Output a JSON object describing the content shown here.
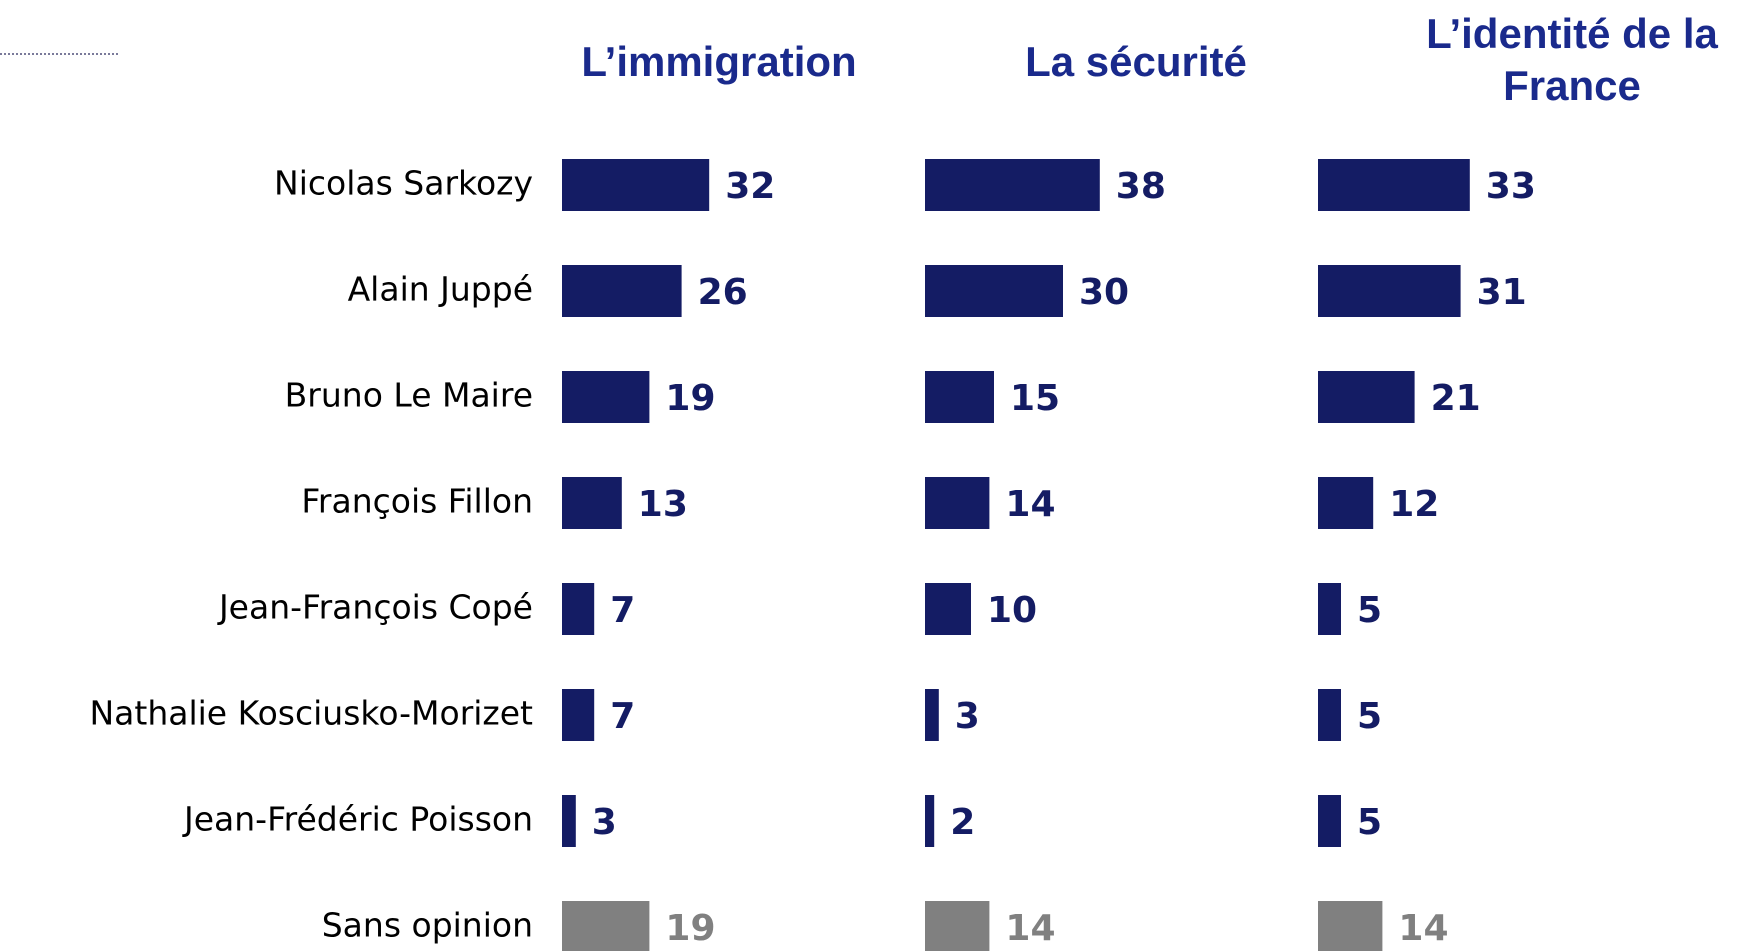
{
  "chart_data": {
    "type": "bar",
    "orientation": "horizontal",
    "categories": [
      "Nicolas Sarkozy",
      "Alain Juppé",
      "Bruno Le Maire",
      "François Fillon",
      "Jean-François Copé",
      "Nathalie Kosciusko-Morizet",
      "Jean-Frédéric Poisson",
      "Sans opinion"
    ],
    "series": [
      {
        "name": "L’immigration",
        "values": [
          32,
          26,
          19,
          13,
          7,
          7,
          3,
          19
        ],
        "colors": [
          "#141c64",
          "#141c64",
          "#141c64",
          "#141c64",
          "#141c64",
          "#141c64",
          "#141c64",
          "#808080"
        ]
      },
      {
        "name": "La sécurité",
        "values": [
          38,
          30,
          15,
          14,
          10,
          3,
          2,
          14
        ],
        "colors": [
          "#141c64",
          "#141c64",
          "#141c64",
          "#141c64",
          "#141c64",
          "#141c64",
          "#141c64",
          "#808080"
        ]
      },
      {
        "name": "L’identité de la France",
        "values": [
          33,
          31,
          21,
          12,
          5,
          5,
          5,
          14
        ],
        "colors": [
          "#141c64",
          "#141c64",
          "#141c64",
          "#141c64",
          "#141c64",
          "#141c64",
          "#141c64",
          "#808080"
        ]
      }
    ]
  }
}
